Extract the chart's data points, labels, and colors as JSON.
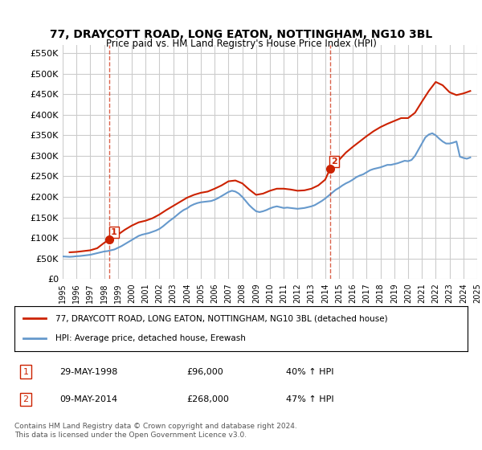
{
  "title": "77, DRAYCOTT ROAD, LONG EATON, NOTTINGHAM, NG10 3BL",
  "subtitle": "Price paid vs. HM Land Registry's House Price Index (HPI)",
  "xlabel": "",
  "ylabel": "",
  "ylim": [
    0,
    570000
  ],
  "yticks": [
    0,
    50000,
    100000,
    150000,
    200000,
    250000,
    300000,
    350000,
    400000,
    450000,
    500000,
    550000
  ],
  "ytick_labels": [
    "£0",
    "£50K",
    "£100K",
    "£150K",
    "£200K",
    "£250K",
    "£300K",
    "£350K",
    "£400K",
    "£450K",
    "£500K",
    "£550K"
  ],
  "x_start_year": 1995,
  "x_end_year": 2025,
  "xtick_years": [
    1995,
    1996,
    1997,
    1998,
    1999,
    2000,
    2001,
    2002,
    2003,
    2004,
    2005,
    2006,
    2007,
    2008,
    2009,
    2010,
    2011,
    2012,
    2013,
    2014,
    2015,
    2016,
    2017,
    2018,
    2019,
    2020,
    2021,
    2022,
    2023,
    2024,
    2025
  ],
  "hpi_color": "#6699cc",
  "price_color": "#cc2200",
  "marker1_year": 1998.4,
  "marker1_value": 96000,
  "marker1_label": "1",
  "marker2_year": 2014.35,
  "marker2_value": 268000,
  "marker2_label": "2",
  "vline1_year": 1998.4,
  "vline2_year": 2014.35,
  "legend_line1": "77, DRAYCOTT ROAD, LONG EATON, NOTTINGHAM, NG10 3BL (detached house)",
  "legend_line2": "HPI: Average price, detached house, Erewash",
  "table_row1": [
    "1",
    "29-MAY-1998",
    "£96,000",
    "40% ↑ HPI"
  ],
  "table_row2": [
    "2",
    "09-MAY-2014",
    "£268,000",
    "47% ↑ HPI"
  ],
  "footnote": "Contains HM Land Registry data © Crown copyright and database right 2024.\nThis data is licensed under the Open Government Licence v3.0.",
  "bg_color": "#ffffff",
  "grid_color": "#cccccc",
  "hpi_data_x": [
    1995.0,
    1995.25,
    1995.5,
    1995.75,
    1996.0,
    1996.25,
    1996.5,
    1996.75,
    1997.0,
    1997.25,
    1997.5,
    1997.75,
    1998.0,
    1998.25,
    1998.5,
    1998.75,
    1999.0,
    1999.25,
    1999.5,
    1999.75,
    2000.0,
    2000.25,
    2000.5,
    2000.75,
    2001.0,
    2001.25,
    2001.5,
    2001.75,
    2002.0,
    2002.25,
    2002.5,
    2002.75,
    2003.0,
    2003.25,
    2003.5,
    2003.75,
    2004.0,
    2004.25,
    2004.5,
    2004.75,
    2005.0,
    2005.25,
    2005.5,
    2005.75,
    2006.0,
    2006.25,
    2006.5,
    2006.75,
    2007.0,
    2007.25,
    2007.5,
    2007.75,
    2008.0,
    2008.25,
    2008.5,
    2008.75,
    2009.0,
    2009.25,
    2009.5,
    2009.75,
    2010.0,
    2010.25,
    2010.5,
    2010.75,
    2011.0,
    2011.25,
    2011.5,
    2011.75,
    2012.0,
    2012.25,
    2012.5,
    2012.75,
    2013.0,
    2013.25,
    2013.5,
    2013.75,
    2014.0,
    2014.25,
    2014.5,
    2014.75,
    2015.0,
    2015.25,
    2015.5,
    2015.75,
    2016.0,
    2016.25,
    2016.5,
    2016.75,
    2017.0,
    2017.25,
    2017.5,
    2017.75,
    2018.0,
    2018.25,
    2018.5,
    2018.75,
    2019.0,
    2019.25,
    2019.5,
    2019.75,
    2020.0,
    2020.25,
    2020.5,
    2020.75,
    2021.0,
    2021.25,
    2021.5,
    2021.75,
    2022.0,
    2022.25,
    2022.5,
    2022.75,
    2023.0,
    2023.25,
    2023.5,
    2023.75,
    2024.0,
    2024.25,
    2024.5
  ],
  "hpi_data_y": [
    55000,
    54500,
    54000,
    54500,
    55500,
    56000,
    57000,
    58000,
    59000,
    61000,
    63000,
    65000,
    67000,
    68000,
    70000,
    72000,
    76000,
    80000,
    85000,
    90000,
    95000,
    100000,
    105000,
    108000,
    110000,
    112000,
    115000,
    118000,
    122000,
    128000,
    135000,
    142000,
    148000,
    155000,
    162000,
    168000,
    172000,
    178000,
    182000,
    185000,
    187000,
    188000,
    189000,
    190000,
    193000,
    197000,
    202000,
    207000,
    212000,
    215000,
    213000,
    208000,
    200000,
    190000,
    180000,
    172000,
    165000,
    163000,
    165000,
    168000,
    172000,
    175000,
    177000,
    175000,
    173000,
    174000,
    173000,
    172000,
    171000,
    172000,
    173000,
    175000,
    177000,
    180000,
    185000,
    190000,
    196000,
    203000,
    210000,
    217000,
    222000,
    228000,
    233000,
    237000,
    242000,
    248000,
    252000,
    255000,
    260000,
    265000,
    268000,
    270000,
    272000,
    275000,
    278000,
    278000,
    280000,
    282000,
    285000,
    288000,
    287000,
    290000,
    300000,
    315000,
    330000,
    345000,
    352000,
    355000,
    350000,
    342000,
    335000,
    330000,
    330000,
    332000,
    335000,
    298000,
    295000,
    293000,
    296000
  ],
  "price_data_x": [
    1995.5,
    1996.0,
    1996.5,
    1997.0,
    1997.5,
    1998.0,
    1998.4,
    1999.0,
    1999.5,
    2000.0,
    2000.5,
    2001.0,
    2001.5,
    2002.0,
    2002.5,
    2003.0,
    2003.5,
    2004.0,
    2004.5,
    2005.0,
    2005.5,
    2006.0,
    2006.5,
    2007.0,
    2007.5,
    2008.0,
    2008.5,
    2009.0,
    2009.5,
    2010.0,
    2010.5,
    2011.0,
    2011.5,
    2012.0,
    2012.5,
    2013.0,
    2013.5,
    2014.0,
    2014.35,
    2015.0,
    2015.5,
    2016.0,
    2016.5,
    2017.0,
    2017.5,
    2018.0,
    2018.5,
    2019.0,
    2019.5,
    2020.0,
    2020.5,
    2021.0,
    2021.5,
    2022.0,
    2022.5,
    2023.0,
    2023.5,
    2024.0,
    2024.5
  ],
  "price_data_y": [
    65000,
    66000,
    68000,
    70000,
    75000,
    88000,
    96000,
    108000,
    120000,
    130000,
    138000,
    142000,
    148000,
    157000,
    168000,
    178000,
    188000,
    198000,
    205000,
    210000,
    213000,
    220000,
    228000,
    238000,
    240000,
    233000,
    218000,
    205000,
    208000,
    215000,
    220000,
    220000,
    218000,
    215000,
    216000,
    220000,
    228000,
    242000,
    268000,
    290000,
    308000,
    322000,
    335000,
    348000,
    360000,
    370000,
    378000,
    385000,
    392000,
    392000,
    405000,
    432000,
    458000,
    480000,
    472000,
    455000,
    448000,
    452000,
    458000
  ]
}
